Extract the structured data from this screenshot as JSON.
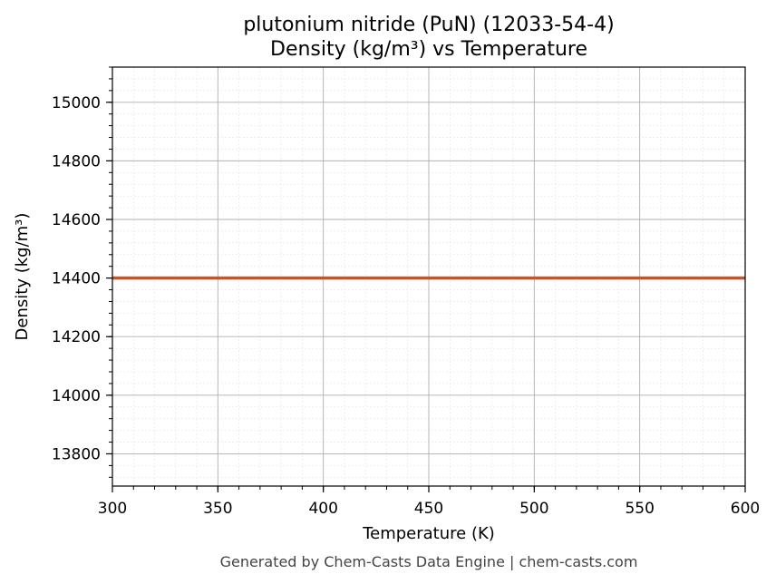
{
  "chart_data": {
    "type": "line",
    "title": "plutonium nitride (PuN) (12033-54-4)",
    "subtitle": "Density (kg/m³) vs Temperature",
    "xlabel": "Temperature (K)",
    "ylabel": "Density (kg/m³)",
    "xlim": [
      300,
      600
    ],
    "ylim": [
      13690,
      15120
    ],
    "x_ticks": [
      300,
      350,
      400,
      450,
      500,
      550,
      600
    ],
    "y_ticks": [
      13800,
      14000,
      14200,
      14400,
      14600,
      14800,
      15000
    ],
    "grid": true,
    "series": [
      {
        "color": "#c8552a",
        "x": [
          300,
          600
        ],
        "y": [
          14400,
          14400
        ]
      }
    ]
  },
  "footer": "Generated by Chem-Casts Data Engine | chem-casts.com"
}
